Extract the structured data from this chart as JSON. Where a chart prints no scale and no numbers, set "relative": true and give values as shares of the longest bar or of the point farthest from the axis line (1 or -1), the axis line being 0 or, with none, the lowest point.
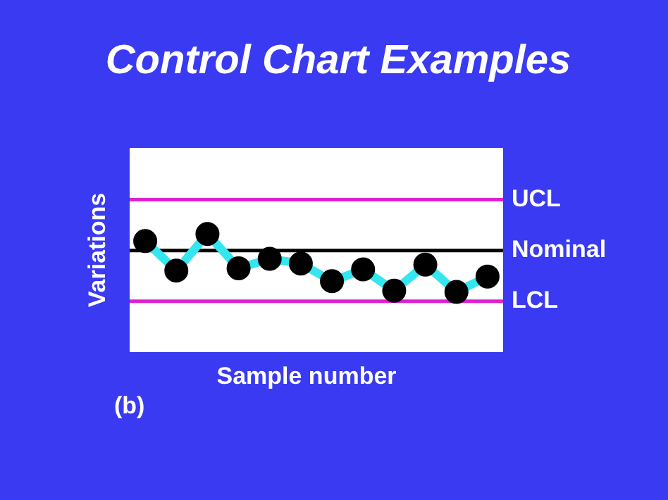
{
  "chart_data": {
    "type": "line",
    "title": "Control Chart Examples",
    "xlabel": "Sample number",
    "ylabel": "Variations",
    "annotations": [
      "(b)"
    ],
    "relative": true,
    "categories": [
      null,
      null,
      null,
      null,
      null,
      null,
      null,
      null,
      null,
      null,
      null,
      null
    ],
    "series": [
      {
        "color": "#33e6f0",
        "values": [
          0.94,
          0.69,
          1,
          0.71,
          0.79,
          0.75,
          0.6,
          0.7,
          0.52,
          0.74,
          0.51,
          0.64
        ]
      }
    ],
    "marker": "circle",
    "grid": false,
    "legend": false,
    "ref_lines": [
      {
        "axis": "y",
        "value": 1.29,
        "label": "UCL",
        "color": "#e020d0"
      },
      {
        "axis": "y",
        "value": 0.86,
        "label": "Nominal",
        "color": "#000000"
      },
      {
        "axis": "y",
        "value": 0.43,
        "label": "LCL",
        "color": "#e020d0"
      }
    ]
  }
}
